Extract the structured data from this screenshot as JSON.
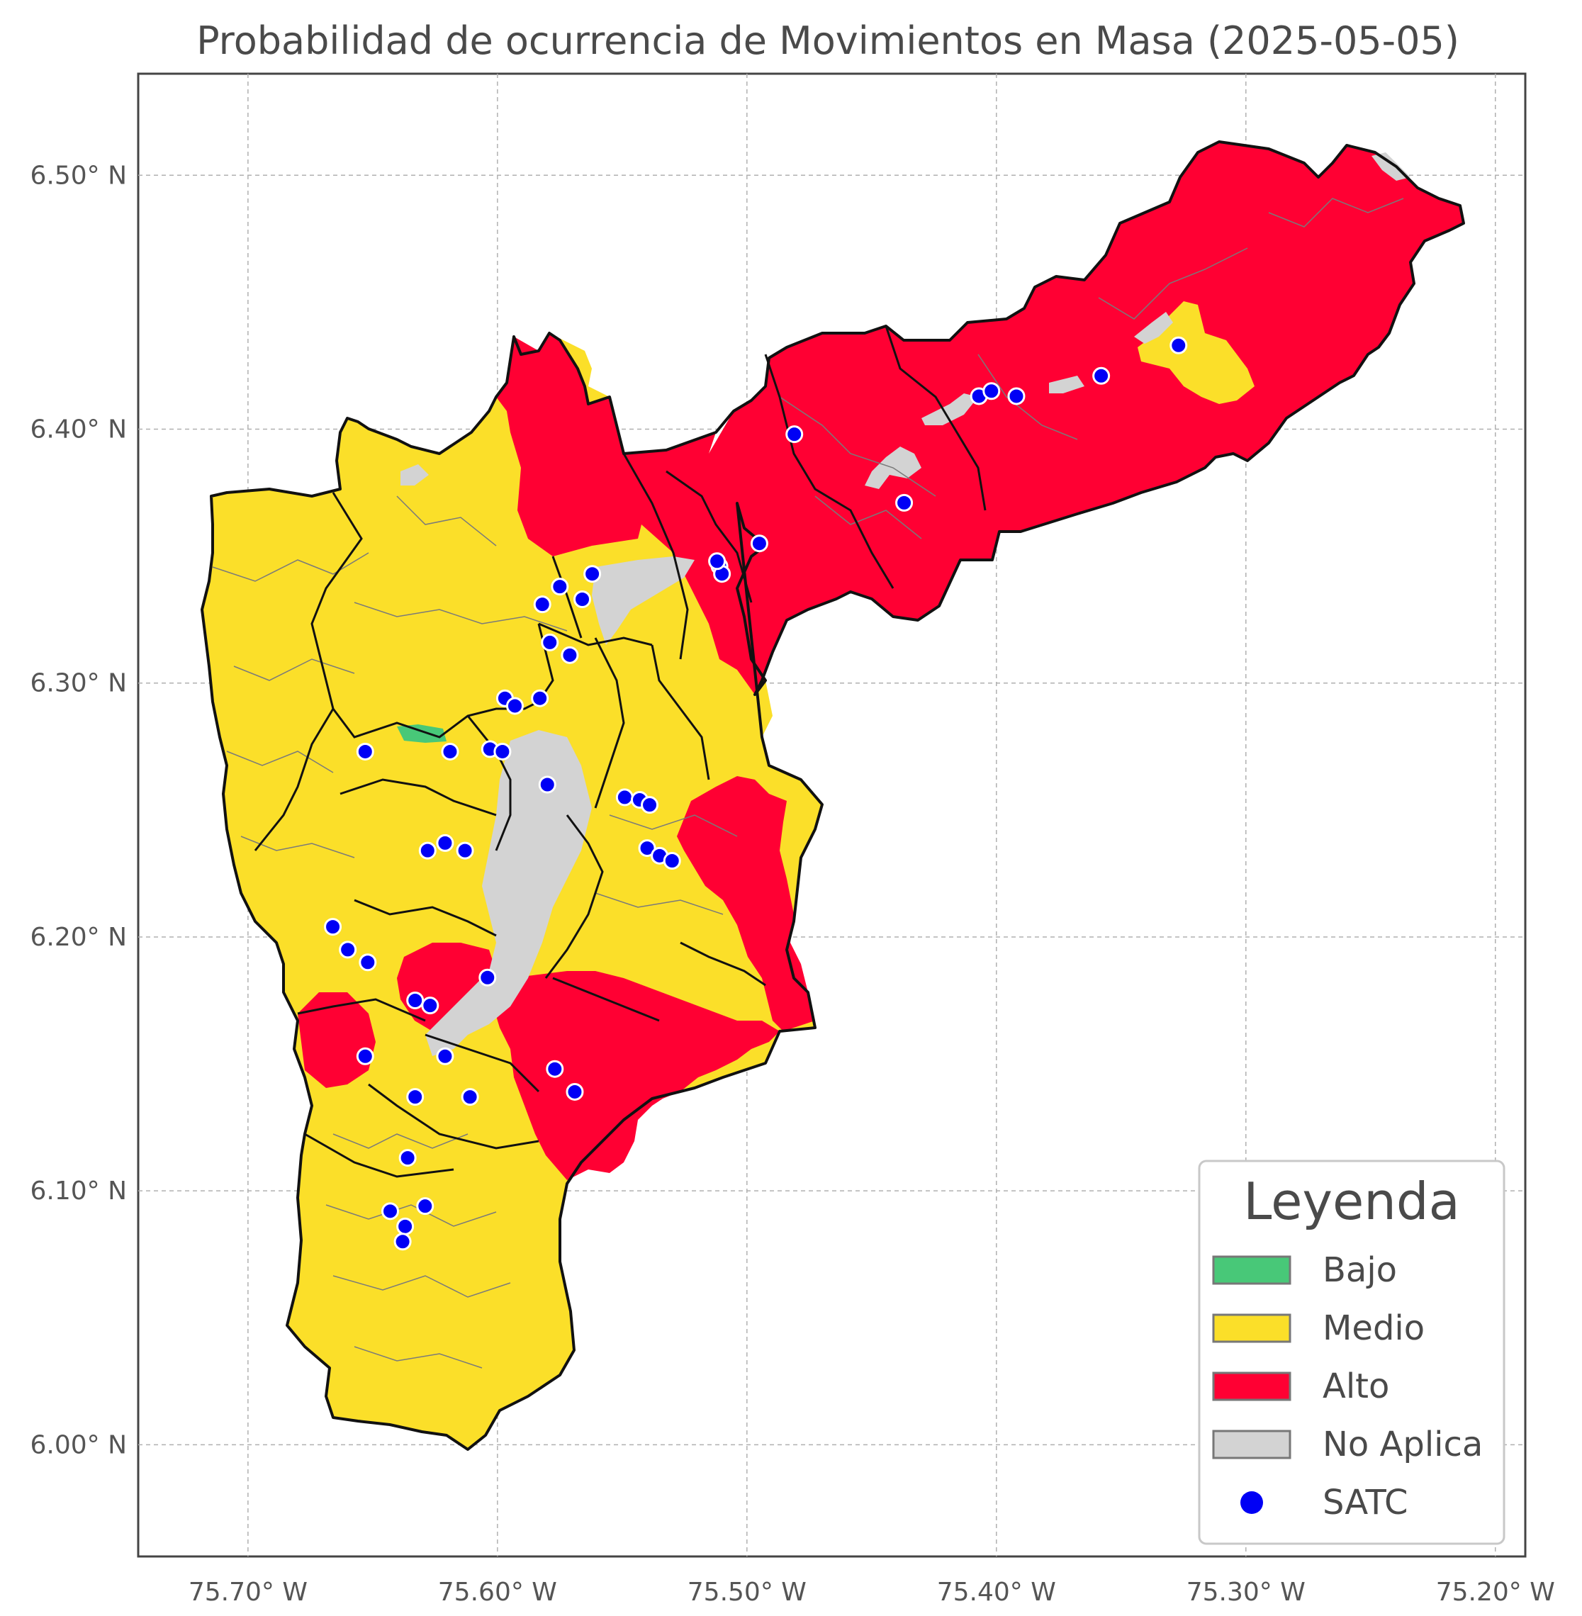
{
  "title": "Probabilidad de ocurrencia de Movimientos en Masa (2025-05-05)",
  "axes": {
    "x_ticks": [
      "75.70° W",
      "75.60° W",
      "75.50° W",
      "75.40° W",
      "75.30° W",
      "75.20° W"
    ],
    "x_tick_values": [
      -75.7,
      -75.6,
      -75.5,
      -75.4,
      -75.3,
      -75.2
    ],
    "y_ticks": [
      "6.50° N",
      "6.40° N",
      "6.30° N",
      "6.20° N",
      "6.10° N",
      "6.00° N"
    ],
    "y_tick_values": [
      6.5,
      6.4,
      6.3,
      6.2,
      6.1,
      6.0
    ],
    "lon_range": [
      -75.744,
      -75.188
    ],
    "lat_range": [
      5.956,
      6.54
    ],
    "grid": true
  },
  "legend": {
    "title": "Leyenda",
    "placement": "bottom-right",
    "items": [
      {
        "label": "Bajo",
        "color": "#48c878",
        "kind": "patch"
      },
      {
        "label": "Medio",
        "color": "#fbdf29",
        "kind": "patch"
      },
      {
        "label": "Alto",
        "color": "#ff0033",
        "kind": "patch"
      },
      {
        "label": "No Aplica",
        "color": "#d3d3d3",
        "kind": "patch"
      },
      {
        "label": "SATC",
        "color": "#0000f5",
        "kind": "marker"
      }
    ]
  },
  "colors": {
    "bajo": "#48c878",
    "medio": "#fbdf29",
    "alto": "#ff0033",
    "no_aplica": "#d3d3d3",
    "satc": "#0000f5"
  },
  "satc_stations": [
    {
      "lon": -75.481,
      "lat": 6.398
    },
    {
      "lon": -75.437,
      "lat": 6.371
    },
    {
      "lon": -75.407,
      "lat": 6.413
    },
    {
      "lon": -75.402,
      "lat": 6.415
    },
    {
      "lon": -75.392,
      "lat": 6.413
    },
    {
      "lon": -75.358,
      "lat": 6.421
    },
    {
      "lon": -75.327,
      "lat": 6.433
    },
    {
      "lon": -75.495,
      "lat": 6.355
    },
    {
      "lon": -75.511,
      "lat": 6.346
    },
    {
      "lon": -75.51,
      "lat": 6.343
    },
    {
      "lon": -75.512,
      "lat": 6.348
    },
    {
      "lon": -75.562,
      "lat": 6.343
    },
    {
      "lon": -75.566,
      "lat": 6.333
    },
    {
      "lon": -75.575,
      "lat": 6.338
    },
    {
      "lon": -75.582,
      "lat": 6.331
    },
    {
      "lon": -75.579,
      "lat": 6.316
    },
    {
      "lon": -75.571,
      "lat": 6.311
    },
    {
      "lon": -75.583,
      "lat": 6.294
    },
    {
      "lon": -75.597,
      "lat": 6.294
    },
    {
      "lon": -75.593,
      "lat": 6.291
    },
    {
      "lon": -75.603,
      "lat": 6.274
    },
    {
      "lon": -75.598,
      "lat": 6.273
    },
    {
      "lon": -75.58,
      "lat": 6.26
    },
    {
      "lon": -75.549,
      "lat": 6.255
    },
    {
      "lon": -75.543,
      "lat": 6.254
    },
    {
      "lon": -75.539,
      "lat": 6.252
    },
    {
      "lon": -75.54,
      "lat": 6.235
    },
    {
      "lon": -75.535,
      "lat": 6.232
    },
    {
      "lon": -75.53,
      "lat": 6.23
    },
    {
      "lon": -75.653,
      "lat": 6.273
    },
    {
      "lon": -75.619,
      "lat": 6.273
    },
    {
      "lon": -75.621,
      "lat": 6.237
    },
    {
      "lon": -75.628,
      "lat": 6.234
    },
    {
      "lon": -75.613,
      "lat": 6.234
    },
    {
      "lon": -75.666,
      "lat": 6.204
    },
    {
      "lon": -75.66,
      "lat": 6.195
    },
    {
      "lon": -75.652,
      "lat": 6.19
    },
    {
      "lon": -75.604,
      "lat": 6.184
    },
    {
      "lon": -75.633,
      "lat": 6.175
    },
    {
      "lon": -75.627,
      "lat": 6.173
    },
    {
      "lon": -75.653,
      "lat": 6.153
    },
    {
      "lon": -75.621,
      "lat": 6.153
    },
    {
      "lon": -75.577,
      "lat": 6.148
    },
    {
      "lon": -75.569,
      "lat": 6.139
    },
    {
      "lon": -75.633,
      "lat": 6.137
    },
    {
      "lon": -75.611,
      "lat": 6.137
    },
    {
      "lon": -75.636,
      "lat": 6.113
    },
    {
      "lon": -75.643,
      "lat": 6.092
    },
    {
      "lon": -75.629,
      "lat": 6.094
    },
    {
      "lon": -75.637,
      "lat": 6.086
    },
    {
      "lon": -75.638,
      "lat": 6.08
    }
  ]
}
